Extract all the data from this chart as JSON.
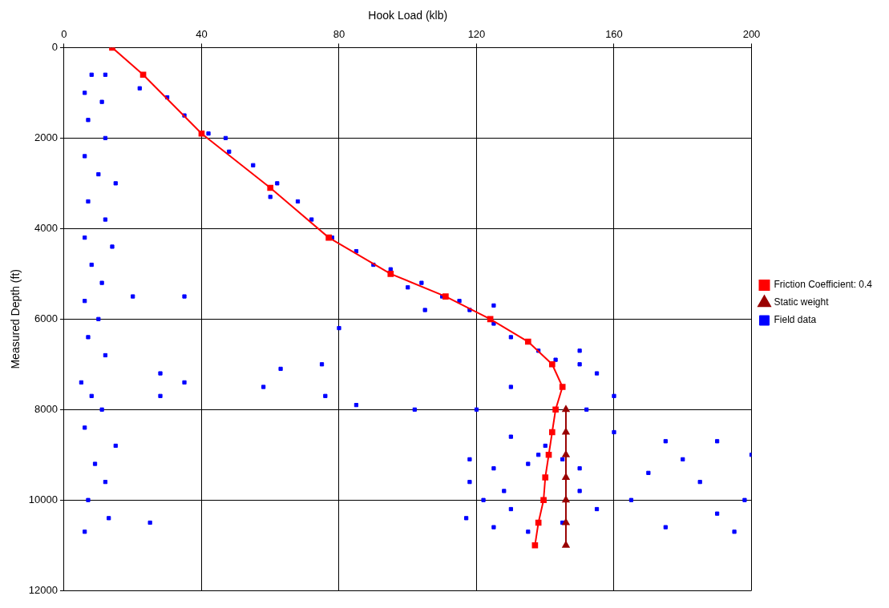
{
  "chart_data": {
    "type": "line",
    "xlabel": "Hook Load (klb)",
    "ylabel": "Measured Depth (ft)",
    "xlim": [
      0,
      200
    ],
    "xticks": [
      0,
      40,
      80,
      120,
      160,
      200
    ],
    "ylim": [
      12000,
      0
    ],
    "yticks": [
      {
        "value": 0,
        "label": "0"
      },
      {
        "value": 2000,
        "label": "2000"
      },
      {
        "value": 4000,
        "label": "4000"
      },
      {
        "value": 6000,
        "label": "6000"
      },
      {
        "value": 8000,
        "label": "8000"
      },
      {
        "value": 10000,
        "label": "10000"
      },
      {
        "value": 12000,
        "label": "12000"
      }
    ],
    "grid": true,
    "legend": "right",
    "series": [
      {
        "name": "Friction Coefficient: 0.4",
        "color": "#ff0000",
        "marker": "square",
        "x": [
          14,
          23,
          40,
          60,
          77,
          95,
          111,
          124,
          135,
          142,
          145,
          143,
          142,
          141,
          140,
          139.5,
          138,
          137
        ],
        "values": [
          0,
          600,
          1900,
          3100,
          4200,
          5000,
          5500,
          6000,
          6500,
          7000,
          7500,
          8000,
          8500,
          9000,
          9500,
          10000,
          10500,
          11000
        ]
      },
      {
        "name": "Static weight",
        "color": "#990000",
        "marker": "triangle",
        "x": [
          146,
          146,
          146,
          146,
          146,
          146,
          146
        ],
        "values": [
          8000,
          8500,
          9000,
          9500,
          10000,
          10500,
          11000
        ]
      },
      {
        "name": "Field data",
        "type": "scatter",
        "color": "#0000ff",
        "marker": "square",
        "x": [
          8,
          12,
          6,
          11,
          7,
          12,
          6,
          10,
          15,
          7,
          12,
          6,
          14,
          8,
          11,
          6,
          20,
          35,
          10,
          7,
          12,
          28,
          5,
          35,
          8,
          28,
          11,
          6,
          15,
          9,
          12,
          7,
          13,
          25,
          6,
          22,
          30,
          35,
          42,
          48,
          55,
          62,
          68,
          72,
          78,
          85,
          95,
          104,
          110,
          118,
          125,
          130,
          138,
          143,
          150,
          155,
          60,
          47,
          90,
          100,
          115,
          125,
          150,
          160,
          152,
          130,
          105,
          80,
          75,
          63,
          58,
          76,
          85,
          102,
          120,
          130,
          140,
          160,
          175,
          190,
          200,
          180,
          170,
          185,
          198,
          165,
          190,
          175,
          195,
          150,
          155,
          118,
          125,
          135,
          118,
          128,
          122,
          130,
          117,
          125,
          135,
          145,
          150,
          145,
          138
        ],
        "values": [
          600,
          600,
          1000,
          1200,
          1600,
          2000,
          2400,
          2800,
          3000,
          3400,
          3800,
          4200,
          4400,
          4800,
          5200,
          5600,
          5500,
          5500,
          6000,
          6400,
          6800,
          7200,
          7400,
          7400,
          7700,
          7700,
          8000,
          8400,
          8800,
          9200,
          9600,
          10000,
          10400,
          10500,
          10700,
          900,
          1100,
          1500,
          1900,
          2300,
          2600,
          3000,
          3400,
          3800,
          4200,
          4500,
          4900,
          5200,
          5500,
          5800,
          6100,
          6400,
          6700,
          6900,
          7000,
          7200,
          3300,
          2000,
          4800,
          5300,
          5600,
          5700,
          6700,
          7700,
          8000,
          7500,
          5800,
          6200,
          7000,
          7100,
          7500,
          7700,
          7900,
          8000,
          8000,
          8600,
          8800,
          8500,
          8700,
          8700,
          9000,
          9100,
          9400,
          9600,
          10000,
          10000,
          10300,
          10600,
          10700,
          9800,
          10200,
          9100,
          9300,
          9200,
          9600,
          9800,
          10000,
          10200,
          10400,
          10600,
          10700,
          10500,
          9300,
          9100,
          9000
        ]
      }
    ]
  }
}
